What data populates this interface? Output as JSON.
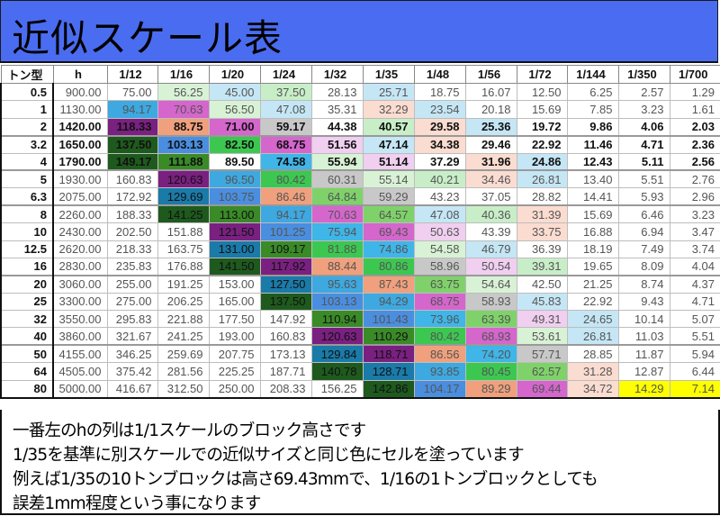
{
  "title": "近似スケール表",
  "table": {
    "headers": [
      "トン型",
      "h",
      "1/12",
      "1/16",
      "1/20",
      "1/24",
      "1/32",
      "1/35",
      "1/48",
      "1/56",
      "1/72",
      "1/144",
      "1/350",
      "1/700"
    ],
    "colors": {
      "c25": "#c5e6f5",
      "c32": "#fbdcd0",
      "c40": "#c8eec8",
      "c47": "#c5e6f5",
      "c51": "#f0cff0",
      "c55": "#d8f2d5",
      "c59": "#c8c8c8",
      "c64": "#7fd26a",
      "c69": "#d466cc",
      "c74": "#3fb5e8",
      "c80": "#3cc850",
      "c87": "#f0a07c",
      "c94": "#3ea8e0",
      "c101": "#4a8ee0",
      "c110": "#3a8a28",
      "c118": "#7a2080",
      "c128": "#1a7aa8",
      "c142": "#1e5a1e",
      "yellow": "#ffff00"
    },
    "rows": [
      {
        "ton": "0.5",
        "h": "900.00",
        "cells": [
          [
            "75.00",
            ""
          ],
          [
            "56.25",
            "c55"
          ],
          [
            "45.00",
            "c47"
          ],
          [
            "37.50",
            "c40"
          ],
          [
            "28.13",
            ""
          ],
          [
            "25.71",
            "c25"
          ],
          [
            "18.75",
            ""
          ],
          [
            "16.07",
            ""
          ],
          [
            "12.50",
            ""
          ],
          [
            "6.25",
            ""
          ],
          [
            "2.57",
            ""
          ],
          [
            "1.29",
            ""
          ]
        ]
      },
      {
        "ton": "1",
        "h": "1130.00",
        "cells": [
          [
            "94.17",
            "c94"
          ],
          [
            "70.63",
            "c69"
          ],
          [
            "56.50",
            "c55"
          ],
          [
            "47.08",
            "c47"
          ],
          [
            "35.31",
            ""
          ],
          [
            "32.29",
            "c32"
          ],
          [
            "23.54",
            "c25"
          ],
          [
            "20.18",
            ""
          ],
          [
            "15.69",
            ""
          ],
          [
            "7.85",
            ""
          ],
          [
            "3.23",
            ""
          ],
          [
            "1.61",
            ""
          ]
        ]
      },
      {
        "ton": "2",
        "h": "1420.00",
        "bold": true,
        "cells": [
          [
            "118.33",
            "c118"
          ],
          [
            "88.75",
            "c87"
          ],
          [
            "71.00",
            "c69"
          ],
          [
            "59.17",
            "c59"
          ],
          [
            "44.38",
            ""
          ],
          [
            "40.57",
            "c40"
          ],
          [
            "29.58",
            "c32"
          ],
          [
            "25.36",
            "c25"
          ],
          [
            "19.72",
            ""
          ],
          [
            "9.86",
            ""
          ],
          [
            "4.06",
            ""
          ],
          [
            "2.03",
            ""
          ]
        ]
      },
      {
        "ton": "3.2",
        "h": "1650.00",
        "bold": true,
        "sep": true,
        "cells": [
          [
            "137.50",
            "c142"
          ],
          [
            "103.13",
            "c101"
          ],
          [
            "82.50",
            "c80"
          ],
          [
            "68.75",
            "c69"
          ],
          [
            "51.56",
            "c51"
          ],
          [
            "47.14",
            "c47"
          ],
          [
            "34.38",
            "c32"
          ],
          [
            "29.46",
            ""
          ],
          [
            "22.92",
            ""
          ],
          [
            "11.46",
            ""
          ],
          [
            "4.71",
            ""
          ],
          [
            "2.36",
            ""
          ]
        ]
      },
      {
        "ton": "4",
        "h": "1790.00",
        "bold": true,
        "cells": [
          [
            "149.17",
            "c142"
          ],
          [
            "111.88",
            "c110"
          ],
          [
            "89.50",
            ""
          ],
          [
            "74.58",
            "c74"
          ],
          [
            "55.94",
            "c55"
          ],
          [
            "51.14",
            "c51"
          ],
          [
            "37.29",
            ""
          ],
          [
            "31.96",
            "c32"
          ],
          [
            "24.86",
            "c25"
          ],
          [
            "12.43",
            ""
          ],
          [
            "5.11",
            ""
          ],
          [
            "2.56",
            ""
          ]
        ]
      },
      {
        "ton": "5",
        "h": "1930.00",
        "sep": true,
        "cells": [
          [
            "160.83",
            ""
          ],
          [
            "120.63",
            "c118"
          ],
          [
            "96.50",
            "c94"
          ],
          [
            "80.42",
            "c80"
          ],
          [
            "60.31",
            "c59"
          ],
          [
            "55.14",
            "c55"
          ],
          [
            "40.21",
            "c40"
          ],
          [
            "34.46",
            "c32"
          ],
          [
            "26.81",
            "c25"
          ],
          [
            "13.40",
            ""
          ],
          [
            "5.51",
            ""
          ],
          [
            "2.76",
            ""
          ]
        ]
      },
      {
        "ton": "6.3",
        "h": "2075.00",
        "cells": [
          [
            "172.92",
            ""
          ],
          [
            "129.69",
            "c128"
          ],
          [
            "103.75",
            "c101"
          ],
          [
            "86.46",
            "c87"
          ],
          [
            "64.84",
            "c64"
          ],
          [
            "59.29",
            "c59"
          ],
          [
            "43.23",
            ""
          ],
          [
            "37.05",
            ""
          ],
          [
            "28.82",
            ""
          ],
          [
            "14.41",
            ""
          ],
          [
            "5.93",
            ""
          ],
          [
            "2.96",
            ""
          ]
        ]
      },
      {
        "ton": "8",
        "h": "2260.00",
        "sep": true,
        "cells": [
          [
            "188.33",
            ""
          ],
          [
            "141.25",
            "c142"
          ],
          [
            "113.00",
            "c110"
          ],
          [
            "94.17",
            "c94"
          ],
          [
            "70.63",
            "c69"
          ],
          [
            "64.57",
            "c64"
          ],
          [
            "47.08",
            "c47"
          ],
          [
            "40.36",
            "c40"
          ],
          [
            "31.39",
            "c32"
          ],
          [
            "15.69",
            ""
          ],
          [
            "6.46",
            ""
          ],
          [
            "3.23",
            ""
          ]
        ]
      },
      {
        "ton": "10",
        "h": "2430.00",
        "cells": [
          [
            "202.50",
            ""
          ],
          [
            "151.88",
            ""
          ],
          [
            "121.50",
            "c118"
          ],
          [
            "101.25",
            "c101"
          ],
          [
            "75.94",
            "c74"
          ],
          [
            "69.43",
            "c69"
          ],
          [
            "50.63",
            "c51"
          ],
          [
            "43.39",
            ""
          ],
          [
            "33.75",
            "c32"
          ],
          [
            "16.88",
            ""
          ],
          [
            "6.94",
            ""
          ],
          [
            "3.47",
            ""
          ]
        ]
      },
      {
        "ton": "12.5",
        "h": "2620.00",
        "cells": [
          [
            "218.33",
            ""
          ],
          [
            "163.75",
            ""
          ],
          [
            "131.00",
            "c128"
          ],
          [
            "109.17",
            "c110"
          ],
          [
            "81.88",
            "c80"
          ],
          [
            "74.86",
            "c74"
          ],
          [
            "54.58",
            "c55"
          ],
          [
            "46.79",
            "c47"
          ],
          [
            "36.39",
            ""
          ],
          [
            "18.19",
            ""
          ],
          [
            "7.49",
            ""
          ],
          [
            "3.74",
            ""
          ]
        ]
      },
      {
        "ton": "16",
        "h": "2830.00",
        "cells": [
          [
            "235.83",
            ""
          ],
          [
            "176.88",
            ""
          ],
          [
            "141.50",
            "c142"
          ],
          [
            "117.92",
            "c118"
          ],
          [
            "88.44",
            "c87"
          ],
          [
            "80.86",
            "c80"
          ],
          [
            "58.96",
            "c59"
          ],
          [
            "50.54",
            "c51"
          ],
          [
            "39.31",
            "c40"
          ],
          [
            "19.65",
            ""
          ],
          [
            "8.09",
            ""
          ],
          [
            "4.04",
            ""
          ]
        ]
      },
      {
        "ton": "20",
        "h": "3060.00",
        "sep": true,
        "cells": [
          [
            "255.00",
            ""
          ],
          [
            "191.25",
            ""
          ],
          [
            "153.00",
            ""
          ],
          [
            "127.50",
            "c128"
          ],
          [
            "95.63",
            "c94"
          ],
          [
            "87.43",
            "c87"
          ],
          [
            "63.75",
            "c64"
          ],
          [
            "54.64",
            "c55"
          ],
          [
            "42.50",
            ""
          ],
          [
            "21.25",
            ""
          ],
          [
            "8.74",
            ""
          ],
          [
            "4.37",
            ""
          ]
        ]
      },
      {
        "ton": "25",
        "h": "3300.00",
        "cells": [
          [
            "275.00",
            ""
          ],
          [
            "206.25",
            ""
          ],
          [
            "165.00",
            ""
          ],
          [
            "137.50",
            "c142"
          ],
          [
            "103.13",
            "c101"
          ],
          [
            "94.29",
            "c94"
          ],
          [
            "68.75",
            "c69"
          ],
          [
            "58.93",
            "c59"
          ],
          [
            "45.83",
            "c47"
          ],
          [
            "22.92",
            ""
          ],
          [
            "9.43",
            ""
          ],
          [
            "4.71",
            ""
          ]
        ]
      },
      {
        "ton": "32",
        "h": "3550.00",
        "cells": [
          [
            "295.83",
            ""
          ],
          [
            "221.88",
            ""
          ],
          [
            "177.50",
            ""
          ],
          [
            "147.92",
            ""
          ],
          [
            "110.94",
            "c110"
          ],
          [
            "101.43",
            "c101"
          ],
          [
            "73.96",
            "c74"
          ],
          [
            "63.39",
            "c64"
          ],
          [
            "49.31",
            "c51"
          ],
          [
            "24.65",
            "c25"
          ],
          [
            "10.14",
            ""
          ],
          [
            "5.07",
            ""
          ]
        ]
      },
      {
        "ton": "40",
        "h": "3860.00",
        "cells": [
          [
            "321.67",
            ""
          ],
          [
            "241.25",
            ""
          ],
          [
            "193.00",
            ""
          ],
          [
            "160.83",
            ""
          ],
          [
            "120.63",
            "c118"
          ],
          [
            "110.29",
            "c110"
          ],
          [
            "80.42",
            "c80"
          ],
          [
            "68.93",
            "c69"
          ],
          [
            "53.61",
            "c55"
          ],
          [
            "26.81",
            "c25"
          ],
          [
            "11.03",
            ""
          ],
          [
            "5.51",
            ""
          ]
        ]
      },
      {
        "ton": "50",
        "h": "4155.00",
        "sep": true,
        "cells": [
          [
            "346.25",
            ""
          ],
          [
            "259.69",
            ""
          ],
          [
            "207.75",
            ""
          ],
          [
            "173.13",
            ""
          ],
          [
            "129.84",
            "c128"
          ],
          [
            "118.71",
            "c118"
          ],
          [
            "86.56",
            "c87"
          ],
          [
            "74.20",
            "c74"
          ],
          [
            "57.71",
            "c59"
          ],
          [
            "28.85",
            ""
          ],
          [
            "11.87",
            ""
          ],
          [
            "5.94",
            ""
          ]
        ]
      },
      {
        "ton": "64",
        "h": "4505.00",
        "cells": [
          [
            "375.42",
            ""
          ],
          [
            "281.56",
            ""
          ],
          [
            "225.25",
            ""
          ],
          [
            "187.71",
            ""
          ],
          [
            "140.78",
            "c142"
          ],
          [
            "128.71",
            "c128"
          ],
          [
            "93.85",
            "c94"
          ],
          [
            "80.45",
            "c80"
          ],
          [
            "62.57",
            "c64"
          ],
          [
            "31.28",
            "c32"
          ],
          [
            "12.87",
            ""
          ],
          [
            "6.44",
            ""
          ]
        ]
      },
      {
        "ton": "80",
        "h": "5000.00",
        "cells": [
          [
            "416.67",
            ""
          ],
          [
            "312.50",
            ""
          ],
          [
            "250.00",
            ""
          ],
          [
            "208.33",
            ""
          ],
          [
            "156.25",
            ""
          ],
          [
            "142.86",
            "c142"
          ],
          [
            "104.17",
            "c101"
          ],
          [
            "89.29",
            "c87"
          ],
          [
            "69.44",
            "c69"
          ],
          [
            "34.72",
            "c32"
          ],
          [
            "14.29",
            "yellow"
          ],
          [
            "7.14",
            "yellow"
          ]
        ]
      }
    ]
  },
  "note": {
    "lines": [
      "一番左のhの列は1/1スケールのブロック高さです",
      "1/35を基準に別スケールでの近似サイズと同じ色にセルを塗っています",
      "例えば1/35の10トンブロックは高さ69.43mmで、1/16の1トンブロックとしても",
      "誤差1mm程度という事になります"
    ]
  }
}
